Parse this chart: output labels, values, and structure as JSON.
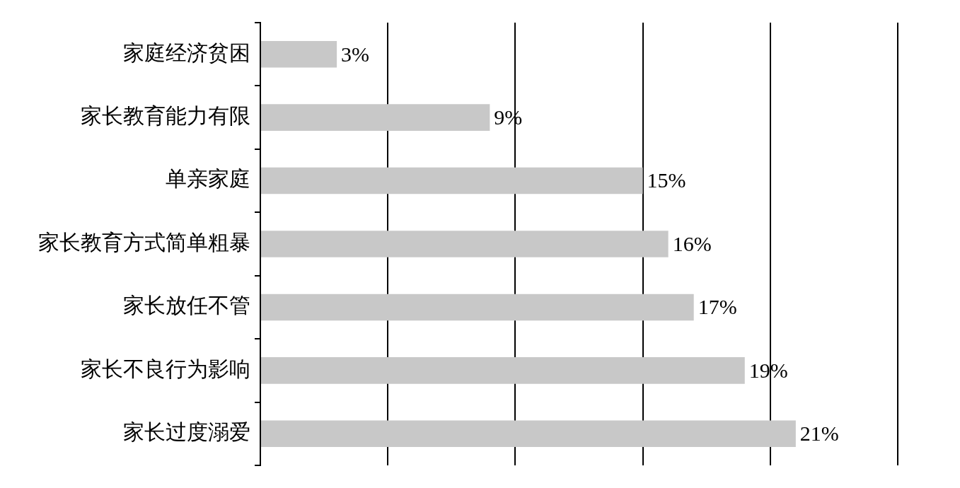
{
  "chart_data": {
    "type": "bar",
    "orientation": "horizontal",
    "categories": [
      "家庭经济贫困",
      "家长教育能力有限",
      "单亲家庭",
      "家长教育方式简单粗暴",
      "家长放任不管",
      "家长不良行为影响",
      "家长过度溺爱"
    ],
    "values": [
      3,
      9,
      15,
      16,
      17,
      19,
      21
    ],
    "value_labels": [
      "3%",
      "9%",
      "15%",
      "16%",
      "17%",
      "19%",
      "21%"
    ],
    "color": "#c8c8c8",
    "xlim": [
      0,
      25
    ],
    "xticks": [
      {
        "value": 0,
        "label": null
      },
      {
        "value": 5,
        "label": null
      },
      {
        "value": 10,
        "label": null
      },
      {
        "value": 15,
        "label": null
      },
      {
        "value": 20,
        "label": null
      },
      {
        "value": 25,
        "label": null
      }
    ],
    "grid": "x",
    "tick_labels": "y",
    "legend": false
  }
}
